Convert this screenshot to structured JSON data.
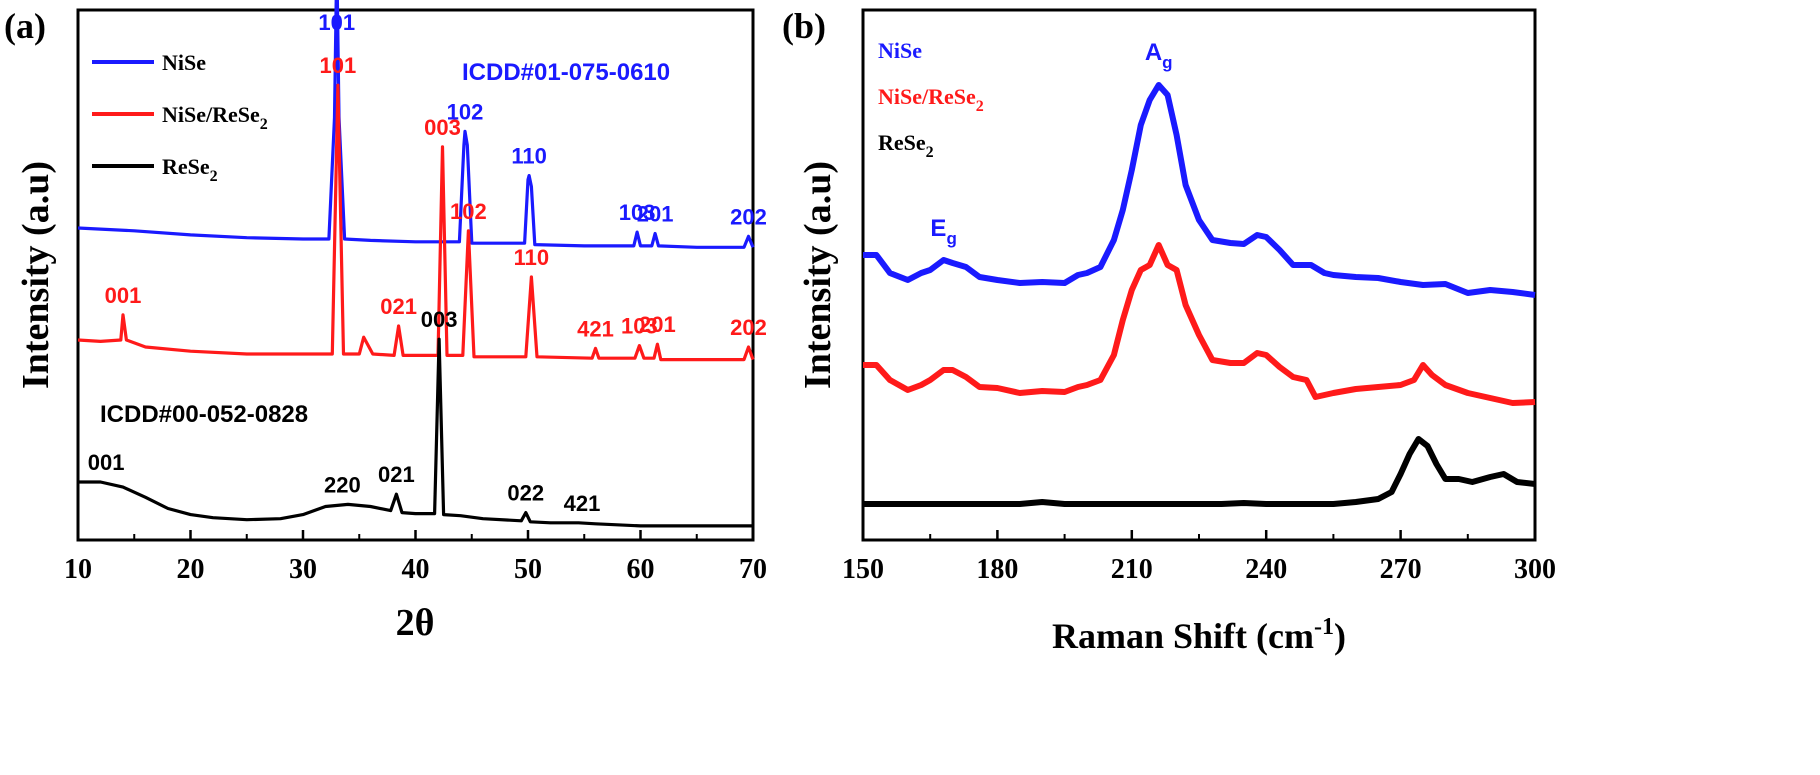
{
  "panels": [
    {
      "panel_label": "(a)",
      "xlabel": "2θ",
      "ylabel": "Intensity (a.u)",
      "xlim": [
        10,
        70
      ],
      "xticks": [
        "10",
        "20",
        "30",
        "40",
        "50",
        "60",
        "70"
      ],
      "legend": [
        {
          "label": "NiSe",
          "color": "#1a1aff"
        },
        {
          "label": "NiSe/ReSe",
          "sub": "2",
          "color": "#ff1a1a"
        },
        {
          "label": "ReSe",
          "sub": "2",
          "color": "#000000"
        }
      ],
      "ref_cards": [
        {
          "text": "ICDD#01-075-0610",
          "color": "#1a1aff"
        },
        {
          "text": "ICDD#00-052-0828",
          "color": "#000000"
        }
      ],
      "peak_labels": [
        {
          "text": "101",
          "series": "NiSe",
          "x": 33.0
        },
        {
          "text": "102",
          "series": "NiSe",
          "x": 44.4
        },
        {
          "text": "110",
          "series": "NiSe",
          "x": 50.1
        },
        {
          "text": "103",
          "series": "NiSe",
          "x": 59.7
        },
        {
          "text": "201",
          "series": "NiSe",
          "x": 61.3
        },
        {
          "text": "202",
          "series": "NiSe",
          "x": 69.6
        },
        {
          "text": "001",
          "series": "NiSe/ReSe2",
          "x": 14.0
        },
        {
          "text": "101",
          "series": "NiSe/ReSe2",
          "x": 33.1
        },
        {
          "text": "021",
          "series": "NiSe/ReSe2",
          "x": 38.5
        },
        {
          "text": "003",
          "series": "NiSe/ReSe2",
          "x": 42.4
        },
        {
          "text": "102",
          "series": "NiSe/ReSe2",
          "x": 44.7
        },
        {
          "text": "110",
          "series": "NiSe/ReSe2",
          "x": 50.3
        },
        {
          "text": "421",
          "series": "NiSe/ReSe2",
          "x": 56.0
        },
        {
          "text": "103",
          "series": "NiSe/ReSe2",
          "x": 59.9
        },
        {
          "text": "201",
          "series": "NiSe/ReSe2",
          "x": 61.5
        },
        {
          "text": "202",
          "series": "NiSe/ReSe2",
          "x": 69.6
        },
        {
          "text": "001",
          "series": "ReSe2",
          "x": 12.5
        },
        {
          "text": "220",
          "series": "ReSe2",
          "x": 33.5
        },
        {
          "text": "021",
          "series": "ReSe2",
          "x": 38.3
        },
        {
          "text": "003",
          "series": "ReSe2",
          "x": 42.1
        },
        {
          "text": "022",
          "series": "ReSe2",
          "x": 49.8
        },
        {
          "text": "421",
          "series": "ReSe2",
          "x": 54.8
        }
      ]
    },
    {
      "panel_label": "(b)",
      "xlabel": "Raman Shift (cm",
      "xlabel_sup": "-1",
      "xlabel_end": ")",
      "ylabel": "Intensity (a.u)",
      "xlim": [
        150,
        300
      ],
      "xticks": [
        "150",
        "180",
        "210",
        "240",
        "270",
        "300"
      ],
      "legend": [
        {
          "label": "NiSe",
          "color": "#1a1aff"
        },
        {
          "label": "NiSe/ReSe",
          "sub": "2",
          "color": "#ff1a1a"
        },
        {
          "label": "ReSe",
          "sub": "2",
          "color": "#000000"
        }
      ],
      "mode_labels": [
        {
          "text": "A",
          "sub": "g",
          "x": 216
        },
        {
          "text": "E",
          "sub": "g",
          "x": 168
        }
      ]
    }
  ],
  "chart_data": [
    {
      "type": "line",
      "xlabel": "2θ",
      "ylabel": "Intensity (a.u)",
      "xlim": [
        10,
        70
      ],
      "grid": false,
      "legend_position": "top-left",
      "series": [
        {
          "name": "NiSe",
          "color": "#1a1aff",
          "x": [
            10,
            15,
            20,
            25,
            30,
            32.3,
            32.8,
            33.0,
            33.2,
            33.7,
            36,
            40,
            43.9,
            44.3,
            44.4,
            44.6,
            45.0,
            49.7,
            50.0,
            50.1,
            50.3,
            50.6,
            55,
            59.4,
            59.7,
            60.0,
            61.0,
            61.3,
            61.6,
            65,
            69.2,
            69.6,
            70
          ],
          "y": [
            0.0,
            -0.02,
            -0.05,
            -0.07,
            -0.08,
            -0.08,
            0.8,
            1.95,
            0.8,
            -0.08,
            -0.09,
            -0.1,
            -0.1,
            0.6,
            0.7,
            0.6,
            -0.11,
            -0.11,
            0.35,
            0.38,
            0.3,
            -0.12,
            -0.13,
            -0.13,
            -0.03,
            -0.13,
            -0.13,
            -0.04,
            -0.13,
            -0.14,
            -0.14,
            -0.06,
            -0.14
          ]
        },
        {
          "name": "NiSe/ReSe2",
          "color": "#ff1a1a",
          "x": [
            10,
            12,
            13.8,
            14.0,
            14.3,
            16,
            20,
            25,
            30,
            32.6,
            33.1,
            33.6,
            35.0,
            35.4,
            36.2,
            38.1,
            38.5,
            38.9,
            42.0,
            42.4,
            42.8,
            44.2,
            44.7,
            45.2,
            49.8,
            50.3,
            50.8,
            55.7,
            56.0,
            56.3,
            59.5,
            59.9,
            60.3,
            61.2,
            61.5,
            61.8,
            65,
            69.2,
            69.6,
            70
          ],
          "y": [
            0.0,
            -0.01,
            0.0,
            0.18,
            0.0,
            -0.05,
            -0.08,
            -0.1,
            -0.1,
            -0.1,
            1.82,
            -0.1,
            -0.1,
            0.02,
            -0.1,
            -0.11,
            0.1,
            -0.11,
            -0.11,
            1.38,
            -0.11,
            -0.11,
            0.78,
            -0.12,
            -0.12,
            0.45,
            -0.12,
            -0.13,
            -0.06,
            -0.13,
            -0.13,
            -0.04,
            -0.13,
            -0.13,
            -0.03,
            -0.14,
            -0.14,
            -0.14,
            -0.05,
            -0.14
          ]
        },
        {
          "name": "ReSe2",
          "color": "#000000",
          "x": [
            10,
            12,
            14,
            16,
            18,
            20,
            22,
            25,
            28,
            30,
            32,
            34,
            36,
            37.8,
            38.3,
            38.8,
            40,
            41.7,
            42.1,
            42.5,
            44,
            46,
            49.4,
            49.8,
            50.2,
            52,
            54.5,
            56,
            60,
            65,
            70
          ],
          "y": [
            0.0,
            0.0,
            -0.05,
            -0.15,
            -0.26,
            -0.32,
            -0.35,
            -0.37,
            -0.36,
            -0.32,
            -0.24,
            -0.22,
            -0.24,
            -0.28,
            -0.12,
            -0.3,
            -0.31,
            -0.31,
            1.4,
            -0.32,
            -0.33,
            -0.36,
            -0.38,
            -0.3,
            -0.39,
            -0.4,
            -0.4,
            -0.41,
            -0.43,
            -0.43,
            -0.43
          ]
        }
      ]
    },
    {
      "type": "line",
      "xlabel": "Raman Shift (cm-1)",
      "ylabel": "Intensity (a.u)",
      "xlim": [
        150,
        300
      ],
      "grid": false,
      "legend_position": "top-left",
      "series": [
        {
          "name": "NiSe",
          "color": "#1a1aff",
          "x": [
            150,
            153,
            156,
            160,
            163,
            165,
            168,
            170,
            173,
            176,
            180,
            185,
            190,
            195,
            198,
            200,
            203,
            206,
            208,
            210,
            212,
            214,
            216,
            218,
            220,
            222,
            225,
            228,
            232,
            235,
            238,
            240,
            243,
            246,
            250,
            253,
            255,
            260,
            265,
            270,
            275,
            280,
            285,
            290,
            295,
            300
          ],
          "y": [
            0.0,
            0.0,
            -0.18,
            -0.25,
            -0.18,
            -0.15,
            -0.05,
            -0.08,
            -0.12,
            -0.22,
            -0.25,
            -0.28,
            -0.27,
            -0.28,
            -0.2,
            -0.18,
            -0.12,
            0.15,
            0.45,
            0.85,
            1.3,
            1.55,
            1.7,
            1.6,
            1.2,
            0.7,
            0.35,
            0.15,
            0.12,
            0.11,
            0.2,
            0.18,
            0.05,
            -0.1,
            -0.1,
            -0.18,
            -0.2,
            -0.22,
            -0.23,
            -0.27,
            -0.3,
            -0.29,
            -0.38,
            -0.35,
            -0.37,
            -0.4
          ]
        },
        {
          "name": "NiSe/ReSe2",
          "color": "#ff1a1a",
          "x": [
            150,
            153,
            156,
            160,
            163,
            165,
            168,
            170,
            173,
            176,
            180,
            185,
            190,
            195,
            198,
            200,
            203,
            206,
            208,
            210,
            212,
            214,
            216,
            218,
            220,
            222,
            225,
            228,
            232,
            235,
            238,
            240,
            243,
            246,
            249,
            251,
            255,
            260,
            265,
            270,
            273,
            275,
            277,
            280,
            285,
            290,
            295,
            300
          ],
          "y": [
            0.0,
            0.0,
            -0.15,
            -0.25,
            -0.2,
            -0.15,
            -0.05,
            -0.05,
            -0.12,
            -0.22,
            -0.23,
            -0.28,
            -0.26,
            -0.27,
            -0.22,
            -0.2,
            -0.15,
            0.1,
            0.45,
            0.75,
            0.95,
            1.0,
            1.2,
            1.0,
            0.95,
            0.6,
            0.3,
            0.05,
            0.02,
            0.02,
            0.12,
            0.1,
            -0.02,
            -0.12,
            -0.15,
            -0.32,
            -0.28,
            -0.24,
            -0.22,
            -0.2,
            -0.15,
            0.0,
            -0.1,
            -0.2,
            -0.28,
            -0.33,
            -0.38,
            -0.37
          ]
        },
        {
          "name": "ReSe2",
          "color": "#000000",
          "x": [
            150,
            155,
            160,
            165,
            170,
            175,
            180,
            185,
            190,
            195,
            200,
            205,
            210,
            215,
            220,
            225,
            230,
            235,
            240,
            245,
            250,
            255,
            260,
            265,
            268,
            270,
            272,
            274,
            276,
            278,
            280,
            283,
            286,
            290,
            293,
            296,
            300
          ],
          "y": [
            0.0,
            0.0,
            0.0,
            0.0,
            0.0,
            0.0,
            0.0,
            0.0,
            0.02,
            0.0,
            0.0,
            0.0,
            0.0,
            0.0,
            0.0,
            0.0,
            0.0,
            0.01,
            0.0,
            0.0,
            0.0,
            0.0,
            0.02,
            0.05,
            0.12,
            0.3,
            0.5,
            0.65,
            0.58,
            0.4,
            0.25,
            0.25,
            0.22,
            0.27,
            0.3,
            0.22,
            0.2
          ]
        }
      ]
    }
  ]
}
